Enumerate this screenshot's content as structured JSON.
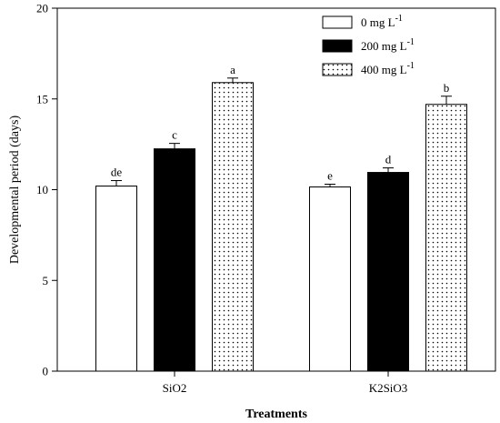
{
  "chart_data": {
    "type": "bar",
    "title": "",
    "xlabel": "Treatments",
    "ylabel": "Developmental period (days)",
    "ylim": [
      0,
      20
    ],
    "yticks": [
      0,
      5,
      10,
      15,
      20
    ],
    "categories": [
      "SiO2",
      "K2SiO3"
    ],
    "series": [
      {
        "name": "0 mg L-1",
        "name_base": "0 mg L",
        "name_sup": "-1",
        "fill": "white",
        "values": [
          10.2,
          10.15
        ],
        "errors": [
          0.3,
          0.15
        ],
        "labels": [
          "de",
          "e"
        ]
      },
      {
        "name": "200 mg L-1",
        "name_base": "200 mg L",
        "name_sup": "-1",
        "fill": "black",
        "values": [
          12.25,
          10.95
        ],
        "errors": [
          0.3,
          0.25
        ],
        "labels": [
          "c",
          "d"
        ]
      },
      {
        "name": "400 mg L-1",
        "name_base": "400 mg L",
        "name_sup": "-1",
        "fill": "dots",
        "values": [
          15.9,
          14.7
        ],
        "errors": [
          0.25,
          0.45
        ],
        "labels": [
          "a",
          "b"
        ]
      }
    ],
    "legend_position": "top-right",
    "grid": false
  }
}
